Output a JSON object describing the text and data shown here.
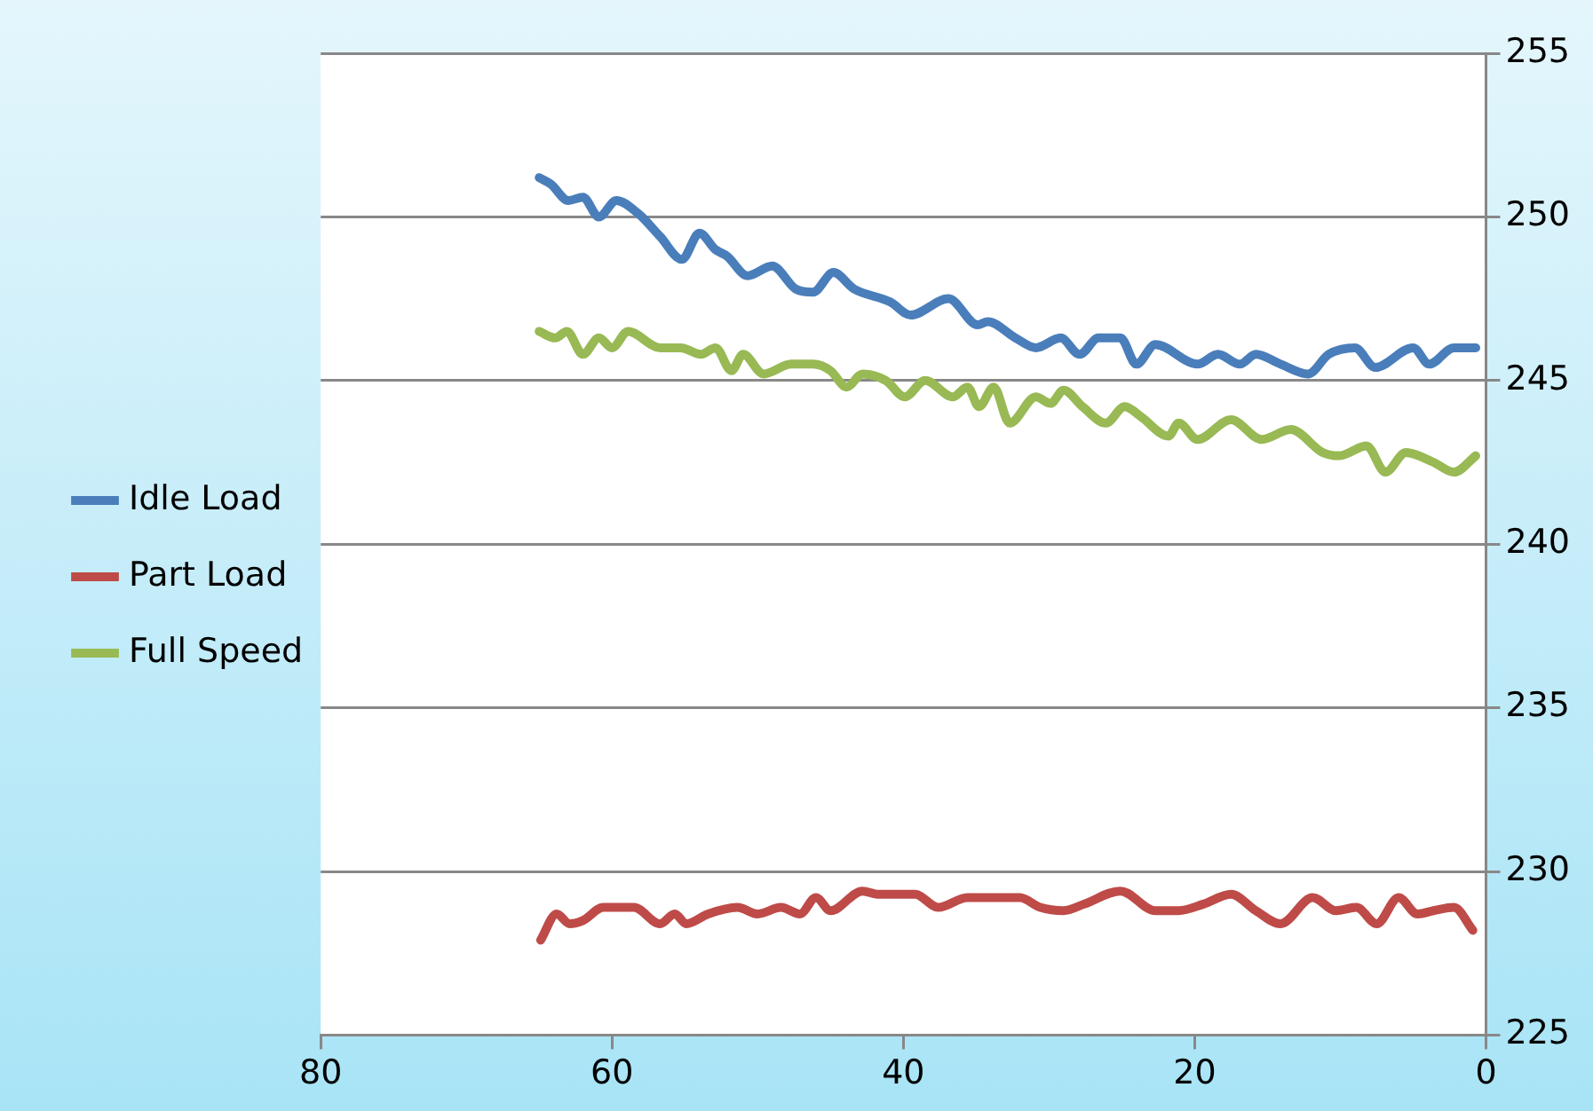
{
  "chart_data": {
    "type": "line",
    "xlim": [
      80,
      0
    ],
    "xticks": [
      80,
      60,
      40,
      20,
      0
    ],
    "ylim": [
      225,
      255
    ],
    "yticks": [
      225,
      230,
      235,
      240,
      245,
      250,
      255
    ],
    "grid": "y",
    "legend": "left",
    "marker": "none",
    "line_style": "solid",
    "series": [
      {
        "name": "Idle Load",
        "color": "#4a7ebb",
        "x": [
          65.0,
          64.2,
          63.0,
          62.0,
          60.9,
          59.7,
          58.2,
          56.7,
          55.2,
          54.0,
          52.9,
          52.1,
          50.7,
          49.0,
          47.4,
          46.2,
          44.8,
          43.4,
          40.9,
          39.5,
          36.9,
          34.9,
          34.2,
          32.3,
          30.9,
          29.2,
          27.9,
          26.6,
          25.1,
          24.0,
          22.7,
          19.8,
          18.4,
          16.9,
          15.8,
          14.1,
          12.2,
          10.8,
          9.0,
          7.6,
          5.0,
          3.9,
          2.2,
          0.7
        ],
        "values": [
          251.2,
          251.0,
          250.5,
          250.6,
          250.0,
          250.5,
          250.1,
          249.4,
          248.7,
          249.5,
          249.0,
          248.8,
          248.2,
          248.5,
          247.8,
          247.7,
          248.3,
          247.8,
          247.4,
          247.0,
          247.5,
          246.7,
          246.8,
          246.3,
          246.0,
          246.3,
          245.8,
          246.3,
          246.3,
          245.5,
          246.1,
          245.5,
          245.8,
          245.5,
          245.8,
          245.5,
          245.2,
          245.8,
          246.0,
          245.4,
          246.0,
          245.5,
          246.0,
          246.0
        ]
      },
      {
        "name": "Part Load",
        "color": "#be4b48",
        "x": [
          64.9,
          63.8,
          62.9,
          62.0,
          60.6,
          58.5,
          56.7,
          55.7,
          54.9,
          53.4,
          51.4,
          50.0,
          48.4,
          47.1,
          46.0,
          45.0,
          42.8,
          41.7,
          39.2,
          37.6,
          35.6,
          33.8,
          32.0,
          30.6,
          29.0,
          27.6,
          25.1,
          22.7,
          21.1,
          19.4,
          17.5,
          15.8,
          14.1,
          11.9,
          10.3,
          8.9,
          7.5,
          6.0,
          4.7,
          3.6,
          2.2,
          0.9
        ],
        "values": [
          227.9,
          228.7,
          228.4,
          228.5,
          228.9,
          228.9,
          228.4,
          228.7,
          228.4,
          228.7,
          228.9,
          228.7,
          228.9,
          228.7,
          229.2,
          228.8,
          229.4,
          229.3,
          229.3,
          228.9,
          229.2,
          229.2,
          229.2,
          228.9,
          228.8,
          229.0,
          229.4,
          228.8,
          228.8,
          229.0,
          229.3,
          228.8,
          228.4,
          229.2,
          228.8,
          228.9,
          228.4,
          229.2,
          228.7,
          228.8,
          228.9,
          228.2
        ]
      },
      {
        "name": "Full Speed",
        "color": "#98b954",
        "x": [
          65.0,
          63.9,
          63.1,
          62.0,
          60.9,
          60.0,
          58.9,
          56.7,
          55.3,
          53.9,
          52.9,
          51.8,
          51.0,
          49.6,
          47.7,
          46.2,
          45.0,
          43.9,
          42.8,
          41.2,
          39.9,
          38.5,
          36.6,
          35.6,
          34.8,
          33.8,
          32.7,
          30.9,
          29.9,
          29.0,
          27.7,
          26.1,
          24.8,
          23.7,
          21.8,
          21.1,
          19.8,
          17.5,
          15.4,
          13.4,
          11.2,
          10.1,
          8.2,
          6.9,
          5.5,
          3.6,
          2.2,
          0.7
        ],
        "values": [
          246.5,
          246.3,
          246.5,
          245.8,
          246.3,
          246.0,
          246.5,
          246.0,
          246.0,
          245.8,
          246.0,
          245.3,
          245.8,
          245.2,
          245.5,
          245.5,
          245.3,
          244.8,
          245.2,
          245.0,
          244.5,
          245.0,
          244.5,
          244.8,
          244.2,
          244.8,
          243.7,
          244.5,
          244.3,
          244.7,
          244.2,
          243.7,
          244.2,
          243.9,
          243.3,
          243.7,
          243.2,
          243.8,
          243.2,
          243.5,
          242.8,
          242.7,
          243.0,
          242.2,
          242.8,
          242.5,
          242.2,
          242.7
        ]
      }
    ]
  }
}
